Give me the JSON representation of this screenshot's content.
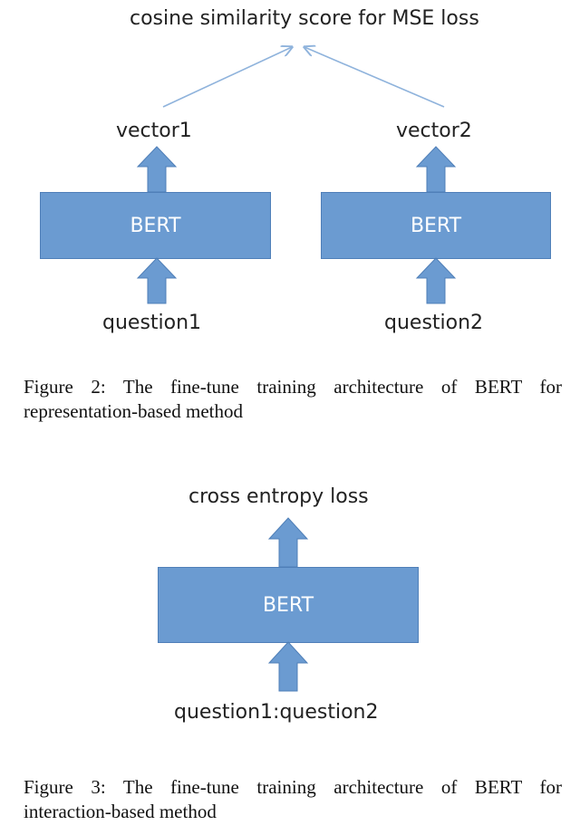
{
  "figure2": {
    "top_label": "cosine similarity score for MSE loss",
    "left": {
      "vector": "vector1",
      "model": "BERT",
      "input": "question1"
    },
    "right": {
      "vector": "vector2",
      "model": "BERT",
      "input": "question2"
    },
    "caption_line1": "Figure 2: The fine-tune training architecture of BERT for",
    "caption_line2": "representation-based method"
  },
  "figure3": {
    "top_label": "cross entropy loss",
    "model": "BERT",
    "input": "question1:question2",
    "caption_line1": "Figure 3: The fine-tune training architecture of BERT for",
    "caption_line2": "interaction-based method"
  },
  "colors": {
    "box_fill": "#6b9bd1",
    "box_border": "#4f7fb8",
    "connector": "#8fb3dc"
  }
}
